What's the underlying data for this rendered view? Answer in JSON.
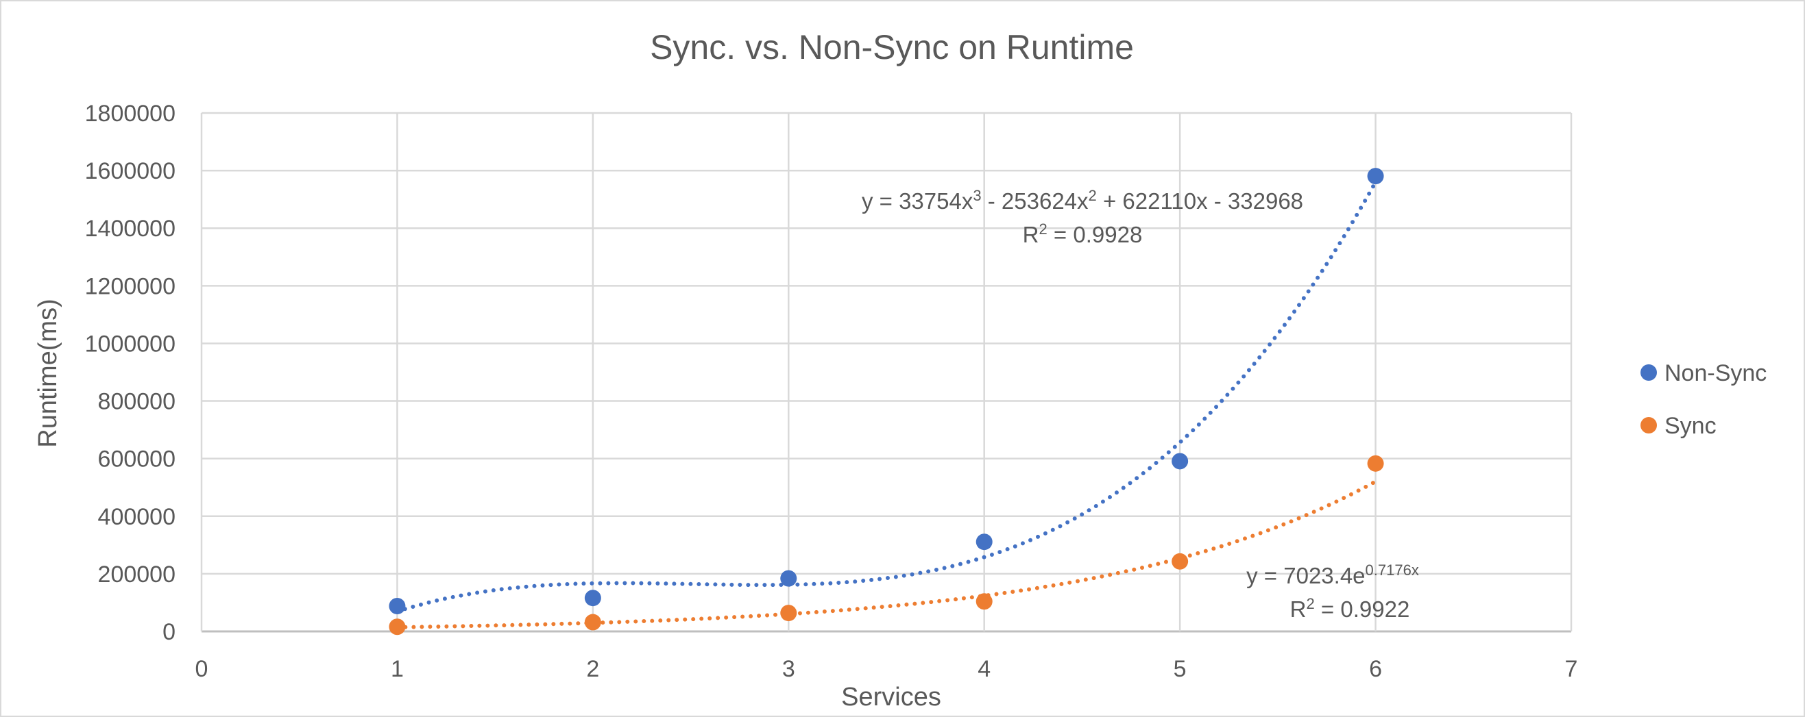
{
  "chart_data": {
    "type": "scatter",
    "title": "Sync. vs. Non-Sync on Runtime",
    "xlabel": "Services",
    "ylabel": "Runtime(ms)",
    "xlim": [
      0,
      7
    ],
    "ylim": [
      0,
      1800000
    ],
    "xticks": [
      0,
      1,
      2,
      3,
      4,
      5,
      6,
      7
    ],
    "yticks": [
      0,
      200000,
      400000,
      600000,
      800000,
      1000000,
      1200000,
      1400000,
      1600000,
      1800000
    ],
    "grid": true,
    "legend_position": "right",
    "series": [
      {
        "name": "Non-Sync",
        "color": "#4472C4",
        "x": [
          1,
          2,
          3,
          4,
          5,
          6
        ],
        "y": [
          88000,
          116000,
          184000,
          311000,
          591000,
          1581000
        ],
        "trendline": {
          "type": "polynomial",
          "coefficients": [
            33754,
            -253624,
            622110,
            -332968
          ],
          "equation_base": "y = 33754x",
          "equation_sup1": "3",
          "equation_mid": " - 253624x",
          "equation_sup2": "2",
          "equation_end": " + 622110x - 332968",
          "r2_prefix": "R",
          "r2_sup": "2",
          "r2_value": " = 0.9928"
        }
      },
      {
        "name": "Sync",
        "color": "#ED7D31",
        "x": [
          1,
          2,
          3,
          4,
          5,
          6
        ],
        "y": [
          16000,
          32000,
          64000,
          104000,
          243000,
          583000
        ],
        "trendline": {
          "type": "exponential",
          "a": 7023.4,
          "b": 0.7176,
          "equation_base": "y = 7023.4e",
          "equation_sup": "0.7176x",
          "r2_prefix": "R",
          "r2_sup": "2",
          "r2_value": " = 0.9922"
        }
      }
    ]
  }
}
